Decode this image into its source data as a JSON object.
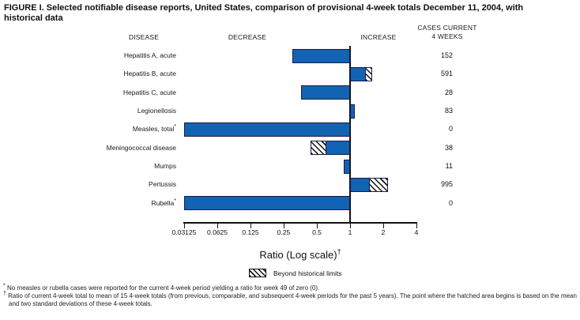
{
  "title": "FIGURE I. Selected notifiable disease reports, United States, comparison of provisional 4-week totals December 11, 2004, with historical data",
  "columns": {
    "disease": "DISEASE",
    "decrease": "DECREASE",
    "increase": "INCREASE",
    "cases_line1": "CASES CURRENT",
    "cases_line2": "4 WEEKS"
  },
  "chart_data": {
    "type": "bar",
    "orientation": "horizontal",
    "scale": "log2",
    "x_range": [
      0.03125,
      4
    ],
    "x_ticks": [
      "0.03125",
      "0.0625",
      "0.125",
      "0.25",
      "0.5",
      "1",
      "2",
      "4"
    ],
    "baseline": 1,
    "xlabel": "Ratio (Log scale)",
    "xlabel_sup": "†",
    "rows": [
      {
        "label": "Hepatitis A, acute",
        "ratio": 0.3,
        "beyond_limit": null,
        "cases": 152
      },
      {
        "label": "Hepatitis B, acute",
        "ratio": 1.6,
        "beyond_limit": 1.4,
        "cases": 591
      },
      {
        "label": "Hepatitis C, acute",
        "ratio": 0.36,
        "beyond_limit": null,
        "cases": 28
      },
      {
        "label": "Legionellosis",
        "ratio": 1.1,
        "beyond_limit": null,
        "cases": 83
      },
      {
        "label": "Measles, total*",
        "ratio": 0,
        "beyond_limit": null,
        "cases": 0
      },
      {
        "label": "Meningococcal disease",
        "ratio": 0.44,
        "beyond_limit": 0.6,
        "cases": 38
      },
      {
        "label": "Mumps",
        "ratio": 0.88,
        "beyond_limit": null,
        "cases": 11
      },
      {
        "label": "Pertussis",
        "ratio": 2.2,
        "beyond_limit": 1.5,
        "cases": 995
      },
      {
        "label": "Rubella*",
        "ratio": 0,
        "beyond_limit": null,
        "cases": 0
      }
    ],
    "legend": [
      {
        "swatch": "hatch",
        "label": "Beyond historical limits"
      }
    ]
  },
  "colors": {
    "bar_fill": "#1263b2",
    "bar_border": "#1a1a4a",
    "axis": "#111111",
    "hatch_line": "#111111"
  },
  "footnotes": [
    {
      "marker": "*",
      "text": "No measles or rubella cases were reported for the current 4-week period yielding a ratio for week 49 of zero (0)."
    },
    {
      "marker": "†",
      "text": "Ratio of current 4-week total to mean of 15 4-week totals (from previous, comparable, and subsequent 4-week periods for the past 5 years). The point where the hatched area begins is based on the mean and two standard deviations of these 4-week totals."
    }
  ]
}
